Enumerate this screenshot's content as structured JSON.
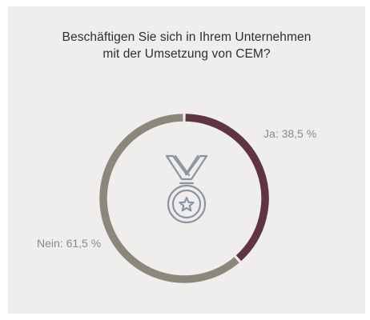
{
  "title_lines": [
    "Beschäftigen Sie sich in Ihrem Unternehmen",
    "mit der Umsetzung von CEM?"
  ],
  "colors": {
    "ja": "#5e3540",
    "nein": "#8b877d",
    "background": "#efeeec",
    "icon": "#8a94a2"
  },
  "icon": "medal-star-icon",
  "chart_data": {
    "type": "pie",
    "style": "donut",
    "title": "Beschäftigen Sie sich in Ihrem Unternehmen mit der Umsetzung von CEM?",
    "series": [
      {
        "name": "Ja",
        "value": 38.5,
        "label": "Ja: 38,5 %"
      },
      {
        "name": "Nein",
        "value": 61.5,
        "label": "Nein: 61,5 %"
      }
    ]
  }
}
